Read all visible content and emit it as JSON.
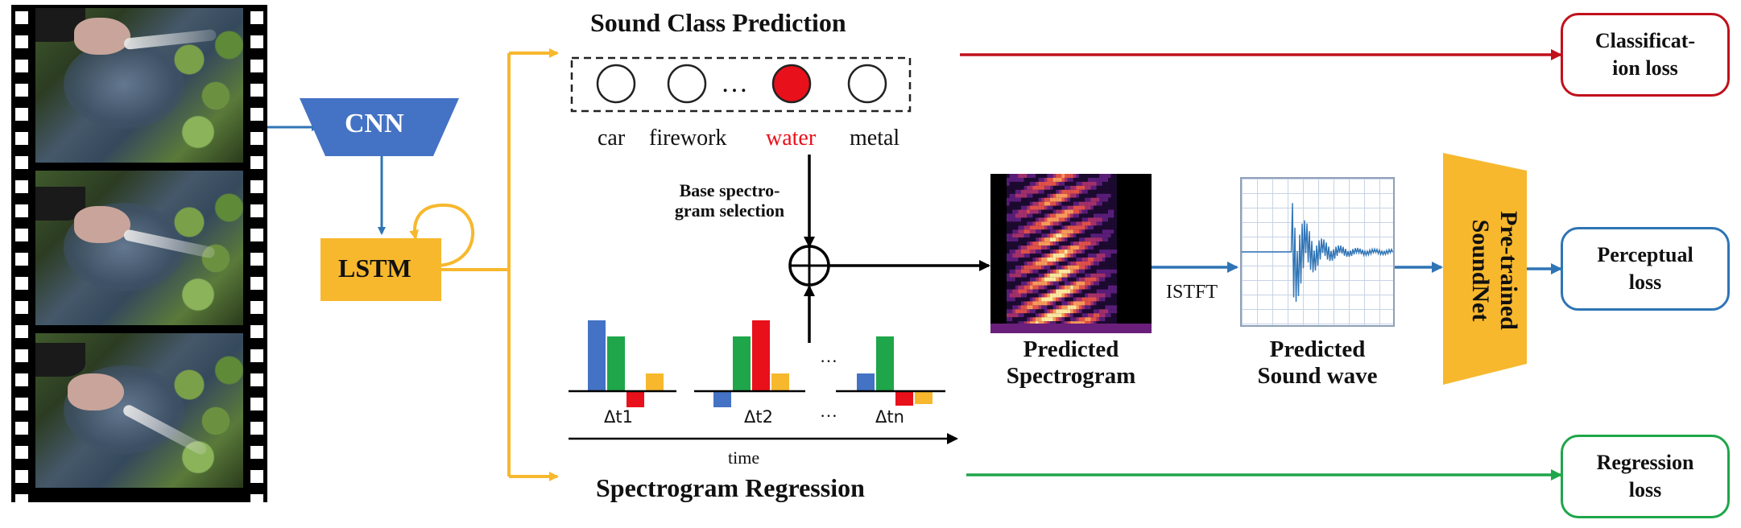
{
  "sound_class": {
    "title": "Sound Class Prediction",
    "dots_ellipsis": "…",
    "classes": [
      "car",
      "firework",
      "water",
      "metal"
    ],
    "selected_color": "#e8101a"
  },
  "cnn_label": "CNN",
  "lstm_label": "LSTM",
  "base_selection": {
    "line1": "Base spectro-",
    "line2": "gram selection"
  },
  "regression": {
    "title": "Spectrogram Regression",
    "time_label": "time",
    "ellipsis": "…",
    "deltas": [
      "Δt1",
      "Δt2",
      "Δtn"
    ]
  },
  "predicted_spectrogram": {
    "line1": "Predicted",
    "line2": "Spectrogram"
  },
  "istft_label": "ISTFT",
  "predicted_wave": {
    "line1": "Predicted",
    "line2": "Sound wave"
  },
  "soundnet": {
    "line1": "Pre-trained",
    "line2": "SoundNet"
  },
  "losses": {
    "classification": {
      "line1": "Classificat-",
      "line2": "ion loss",
      "color": "#c0111b"
    },
    "perceptual": {
      "line1": "Perceptual",
      "line2": "loss",
      "color": "#2f74b5"
    },
    "regression": {
      "line1": "Regression",
      "line2": "loss",
      "color": "#1fa64a"
    }
  },
  "colors": {
    "blue": "#2f74b5",
    "orange": "#f7b82e",
    "red": "#c0111b",
    "green": "#1fa64a",
    "bar_blue": "#4472c4",
    "bar_green": "#1fa64a",
    "bar_red": "#e8101a",
    "bar_orange": "#f7b82e"
  }
}
